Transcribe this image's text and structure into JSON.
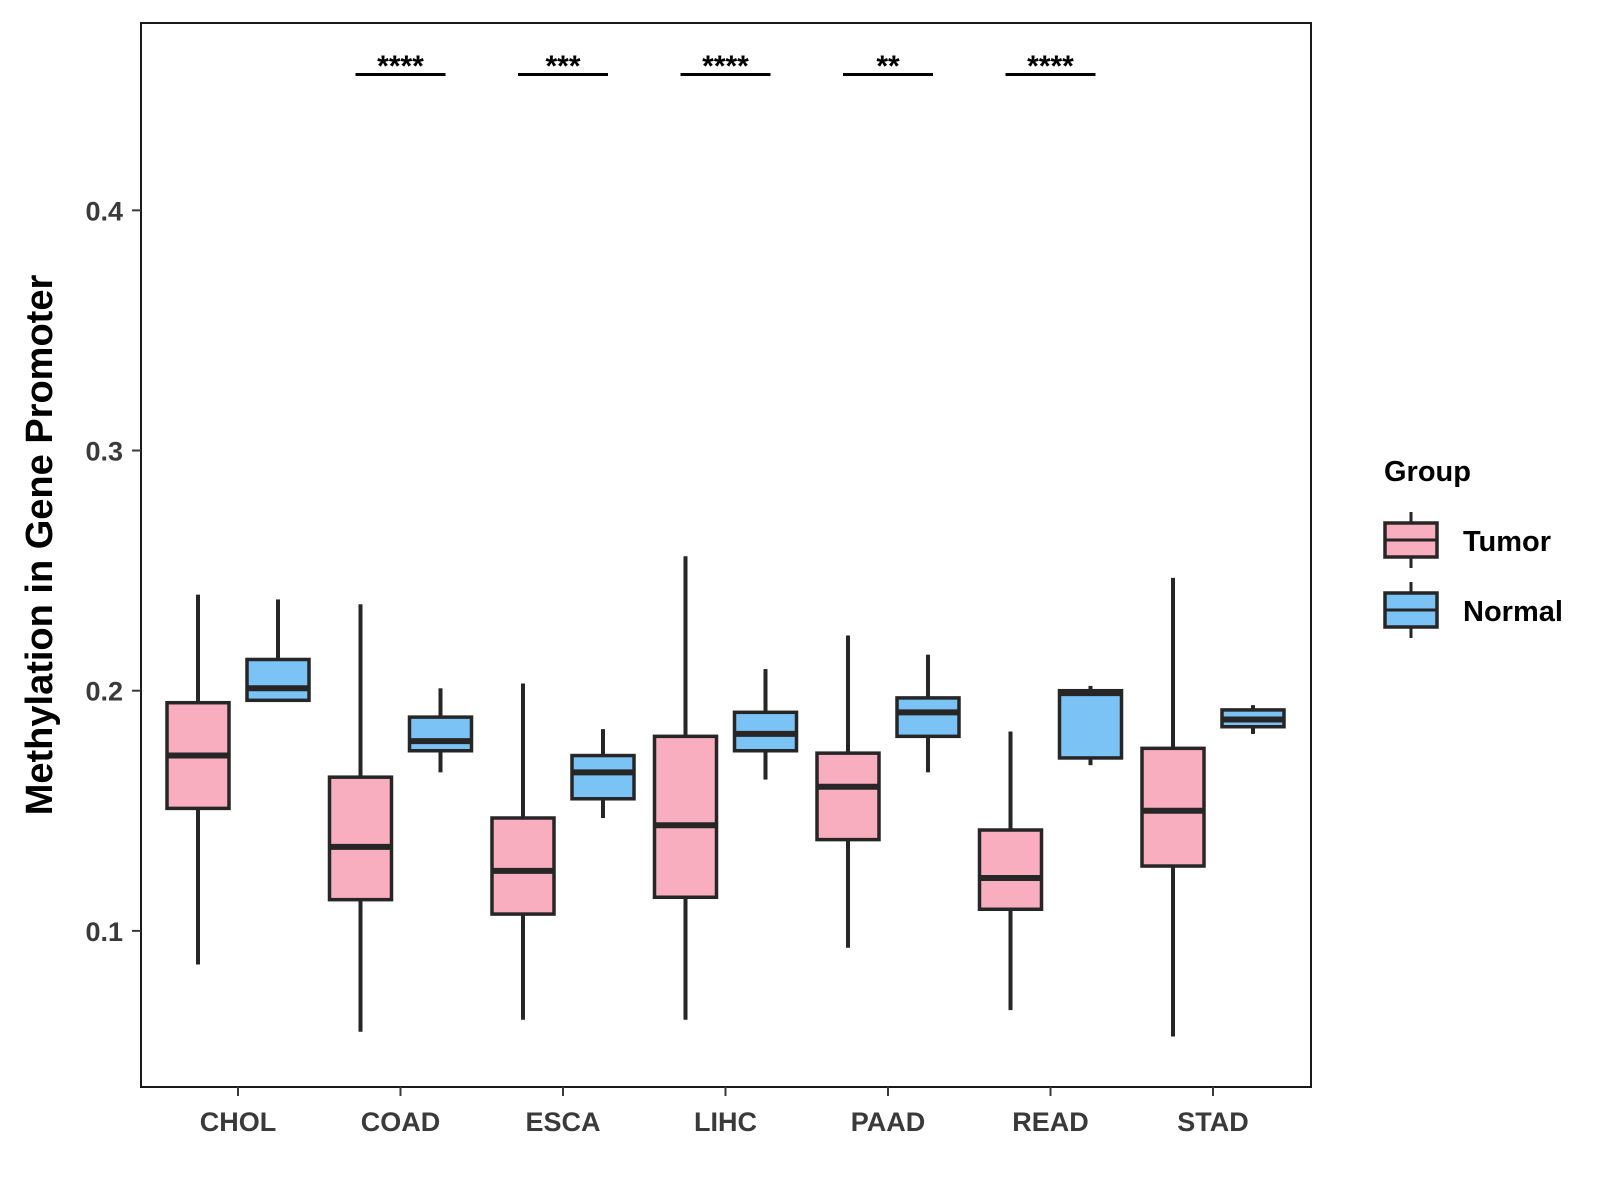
{
  "chart_data": {
    "type": "boxplot",
    "title": "",
    "xlabel": "",
    "ylabel": "Methylation in Gene Promoter",
    "ylim": [
      0.035,
      0.478
    ],
    "yticks": [
      "0.1",
      "0.2",
      "0.3",
      "0.4"
    ],
    "categories": [
      "CHOL",
      "COAD",
      "ESCA",
      "LIHC",
      "PAAD",
      "READ",
      "STAD"
    ],
    "legend": {
      "title": "Group",
      "position": "right",
      "entries": [
        "Tumor",
        "Normal"
      ]
    },
    "colors": {
      "Tumor": "#F9AEC0",
      "Normal": "#7BC3F5",
      "outline": "#262626"
    },
    "significance": [
      "",
      "****",
      "***",
      "****",
      "**",
      "****",
      ""
    ],
    "series": [
      {
        "name": "Tumor",
        "boxes": [
          {
            "min": 0.086,
            "q1": 0.151,
            "median": 0.173,
            "q3": 0.195,
            "max": 0.24
          },
          {
            "min": 0.058,
            "q1": 0.113,
            "median": 0.135,
            "q3": 0.164,
            "max": 0.236
          },
          {
            "min": 0.063,
            "q1": 0.107,
            "median": 0.125,
            "q3": 0.147,
            "max": 0.203
          },
          {
            "min": 0.063,
            "q1": 0.114,
            "median": 0.144,
            "q3": 0.181,
            "max": 0.256
          },
          {
            "min": 0.093,
            "q1": 0.138,
            "median": 0.16,
            "q3": 0.174,
            "max": 0.223
          },
          {
            "min": 0.067,
            "q1": 0.109,
            "median": 0.122,
            "q3": 0.142,
            "max": 0.183
          },
          {
            "min": 0.056,
            "q1": 0.127,
            "median": 0.15,
            "q3": 0.176,
            "max": 0.247
          }
        ]
      },
      {
        "name": "Normal",
        "boxes": [
          {
            "min": 0.196,
            "q1": 0.196,
            "median": 0.201,
            "q3": 0.213,
            "max": 0.238
          },
          {
            "min": 0.166,
            "q1": 0.175,
            "median": 0.179,
            "q3": 0.189,
            "max": 0.201
          },
          {
            "min": 0.147,
            "q1": 0.155,
            "median": 0.166,
            "q3": 0.173,
            "max": 0.184
          },
          {
            "min": 0.163,
            "q1": 0.175,
            "median": 0.182,
            "q3": 0.191,
            "max": 0.209
          },
          {
            "min": 0.166,
            "q1": 0.181,
            "median": 0.191,
            "q3": 0.197,
            "max": 0.215
          },
          {
            "min": 0.169,
            "q1": 0.172,
            "median": 0.199,
            "q3": 0.2,
            "max": 0.202
          },
          {
            "min": 0.182,
            "q1": 0.185,
            "median": 0.188,
            "q3": 0.192,
            "max": 0.194
          }
        ]
      }
    ]
  }
}
